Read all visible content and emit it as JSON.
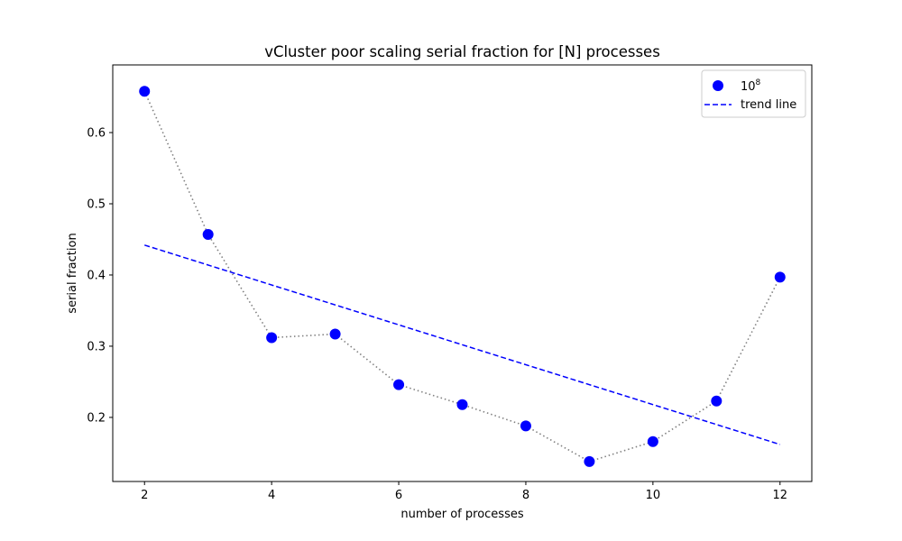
{
  "chart_data": {
    "type": "scatter",
    "title": "vCluster poor scaling serial fraction for [N] processes",
    "xlabel": "number of processes",
    "ylabel": "serial fraction",
    "xlim": [
      1.5,
      12.5
    ],
    "ylim": [
      0.11,
      0.695
    ],
    "xticks": [
      2,
      4,
      6,
      8,
      10,
      12
    ],
    "yticks": [
      0.2,
      0.3,
      0.4,
      0.5,
      0.6
    ],
    "grid": false,
    "legend_position": "top-right",
    "series": [
      {
        "name_base": "10",
        "name_exponent": "8",
        "kind": "scatter-with-dotted-line",
        "color": "#0000ff",
        "line_color": "#808080",
        "x": [
          2,
          3,
          4,
          5,
          6,
          7,
          8,
          9,
          10,
          11,
          12
        ],
        "y": [
          0.658,
          0.457,
          0.312,
          0.317,
          0.246,
          0.218,
          0.188,
          0.138,
          0.166,
          0.223,
          0.397
        ]
      },
      {
        "name": "trend line",
        "kind": "dashed-line",
        "color": "#0000ff",
        "x": [
          2,
          12
        ],
        "y": [
          0.442,
          0.162
        ]
      }
    ]
  }
}
